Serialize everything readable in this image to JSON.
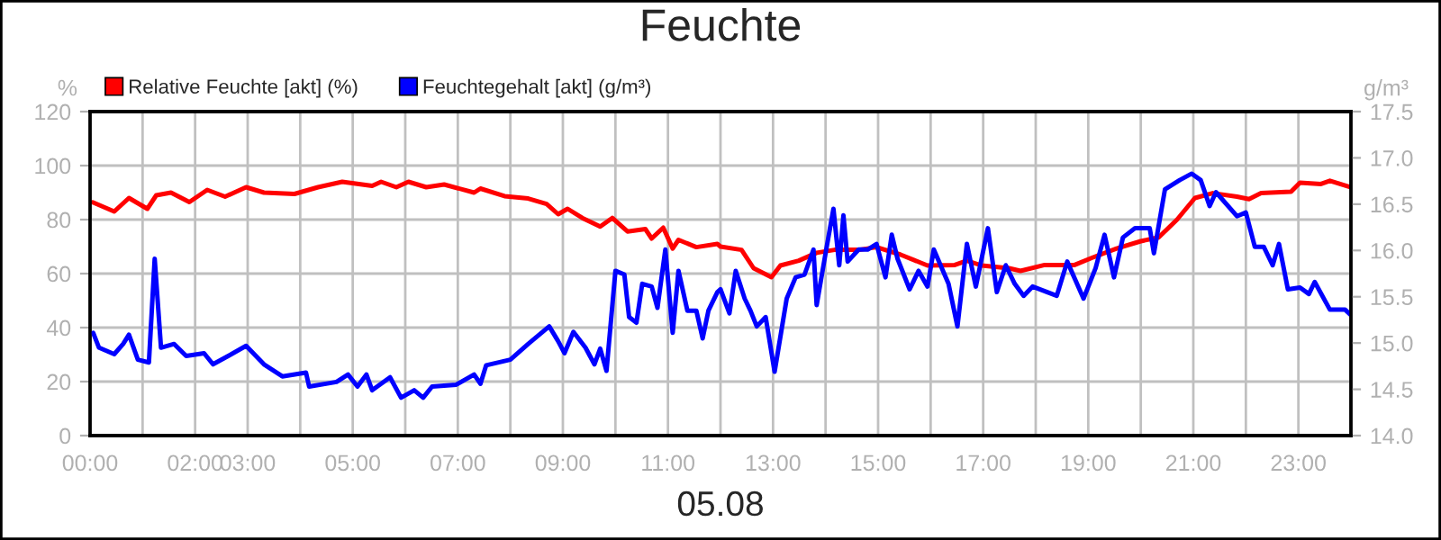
{
  "chart_data": {
    "type": "line",
    "title": "Feuchte",
    "xlabel": "05.08",
    "ylabel": "%",
    "y2label": "g/m³",
    "legend": "top left",
    "grid": true,
    "marker": "none",
    "line_style": "solid",
    "xlim": [
      0,
      24
    ],
    "xticks": [
      {
        "value": 0,
        "label": "00:00"
      },
      {
        "value": 1,
        "label": null
      },
      {
        "value": 2,
        "label": "02:00"
      },
      {
        "value": 3,
        "label": "03:00"
      },
      {
        "value": 4,
        "label": null
      },
      {
        "value": 5,
        "label": "05:00"
      },
      {
        "value": 6,
        "label": null
      },
      {
        "value": 7,
        "label": "07:00"
      },
      {
        "value": 8,
        "label": null
      },
      {
        "value": 9,
        "label": "09:00"
      },
      {
        "value": 10,
        "label": null
      },
      {
        "value": 11,
        "label": "11:00"
      },
      {
        "value": 12,
        "label": null
      },
      {
        "value": 13,
        "label": "13:00"
      },
      {
        "value": 14,
        "label": null
      },
      {
        "value": 15,
        "label": "15:00"
      },
      {
        "value": 16,
        "label": null
      },
      {
        "value": 17,
        "label": "17:00"
      },
      {
        "value": 18,
        "label": null
      },
      {
        "value": 19,
        "label": "19:00"
      },
      {
        "value": 20,
        "label": null
      },
      {
        "value": 21,
        "label": "21:00"
      },
      {
        "value": 22,
        "label": null
      },
      {
        "value": 23,
        "label": "23:00"
      },
      {
        "value": 24,
        "label": null
      }
    ],
    "ylim": [
      0,
      120
    ],
    "yticks": [
      0,
      20,
      40,
      60,
      80,
      100,
      120
    ],
    "y2lim": [
      14.0,
      17.5
    ],
    "y2ticks": [
      {
        "value": 14.0,
        "label": "14.0"
      },
      {
        "value": 14.5,
        "label": "14.5"
      },
      {
        "value": 15.0,
        "label": "15.0"
      },
      {
        "value": 15.5,
        "label": "15.5"
      },
      {
        "value": 16.0,
        "label": "16.0"
      },
      {
        "value": 16.5,
        "label": "16.5"
      },
      {
        "value": 17.0,
        "label": "17.0"
      },
      {
        "value": 17.5,
        "label": "17.5"
      }
    ],
    "series": [
      {
        "name": "Relative Feuchte [akt] (%)",
        "color": "#ff0000",
        "x": [
          0.05,
          0.46,
          0.74,
          1.09,
          1.26,
          1.54,
          1.89,
          2.23,
          2.57,
          2.97,
          3.31,
          3.89,
          4.34,
          4.8,
          5.37,
          5.54,
          5.83,
          6.06,
          6.4,
          6.74,
          7.31,
          7.43,
          7.89,
          8.34,
          8.69,
          8.91,
          9.09,
          9.37,
          9.71,
          9.94,
          10.23,
          10.57,
          10.69,
          10.91,
          11.09,
          11.2,
          11.54,
          11.94,
          12.0,
          12.4,
          12.63,
          12.97,
          13.14,
          13.49,
          13.83,
          14.17,
          14.63,
          14.97,
          15.43,
          15.94,
          16.46,
          16.69,
          16.97,
          17.49,
          17.71,
          18.17,
          18.74,
          19.09,
          19.54,
          20.0,
          20.34,
          20.69,
          21.03,
          21.37,
          21.83,
          22.06,
          22.29,
          22.86,
          23.03,
          23.43,
          23.6,
          24.0
        ],
        "values": [
          86.4,
          83,
          88,
          84,
          89,
          90,
          86.5,
          91,
          88.5,
          92,
          90,
          89.5,
          92,
          94,
          92.5,
          94,
          92,
          94,
          92,
          93,
          90,
          91.5,
          88.7,
          87.8,
          85.8,
          82,
          84,
          80.6,
          77.4,
          80.6,
          75.6,
          76.5,
          73,
          77,
          69.3,
          72.5,
          69.8,
          71,
          70,
          68.8,
          62,
          58.7,
          63,
          64.8,
          67.7,
          68.8,
          68.8,
          69.8,
          67,
          63,
          63.2,
          64.8,
          63,
          62,
          61,
          63.2,
          63.2,
          66,
          69.3,
          72,
          73.4,
          80,
          88,
          89.8,
          88.5,
          87.6,
          89.8,
          90.3,
          93.7,
          93.2,
          94.4,
          92
        ]
      },
      {
        "name": "Feuchtegehalt [akt] (g/m³)",
        "color": "#0000ff",
        "axis": "y2",
        "x": [
          0.06,
          0.17,
          0.46,
          0.63,
          0.74,
          0.91,
          1.12,
          1.23,
          1.35,
          1.6,
          1.83,
          2.17,
          2.34,
          2.63,
          2.97,
          3.31,
          3.66,
          4.11,
          4.17,
          4.69,
          4.91,
          5.09,
          5.26,
          5.37,
          5.71,
          5.92,
          6.17,
          6.34,
          6.51,
          6.97,
          7.31,
          7.43,
          7.54,
          8.0,
          8.34,
          8.74,
          8.91,
          9.03,
          9.2,
          9.43,
          9.6,
          9.71,
          9.83,
          10.0,
          10.17,
          10.26,
          10.4,
          10.51,
          10.69,
          10.8,
          10.95,
          11.09,
          11.2,
          11.37,
          11.54,
          11.66,
          11.77,
          11.94,
          12.0,
          12.17,
          12.29,
          12.46,
          12.57,
          12.69,
          12.86,
          13.03,
          13.26,
          13.43,
          13.6,
          13.77,
          13.83,
          14.0,
          14.15,
          14.26,
          14.34,
          14.42,
          14.63,
          14.8,
          14.97,
          15.14,
          15.26,
          15.37,
          15.6,
          15.77,
          15.94,
          16.06,
          16.34,
          16.51,
          16.69,
          16.86,
          17.09,
          17.26,
          17.43,
          17.6,
          17.77,
          17.94,
          18.4,
          18.6,
          18.91,
          19.14,
          19.31,
          19.49,
          19.66,
          19.89,
          20.17,
          20.25,
          20.46,
          20.74,
          20.97,
          21.14,
          21.31,
          21.43,
          21.83,
          22.0,
          22.17,
          22.34,
          22.51,
          22.63,
          22.8,
          23.03,
          23.2,
          23.31,
          23.6,
          23.89,
          24.0
        ],
        "values": [
          15.11,
          14.95,
          14.88,
          14.99,
          15.09,
          14.82,
          14.79,
          15.91,
          14.95,
          14.99,
          14.86,
          14.89,
          14.77,
          14.86,
          14.97,
          14.77,
          14.64,
          14.68,
          14.53,
          14.58,
          14.66,
          14.53,
          14.66,
          14.49,
          14.63,
          14.41,
          14.49,
          14.41,
          14.53,
          14.55,
          14.66,
          14.56,
          14.76,
          14.82,
          14.99,
          15.18,
          15.02,
          14.89,
          15.12,
          14.95,
          14.77,
          14.94,
          14.7,
          15.78,
          15.74,
          15.28,
          15.22,
          15.64,
          15.61,
          15.38,
          16.01,
          15.11,
          15.78,
          15.35,
          15.35,
          15.05,
          15.35,
          15.55,
          15.58,
          15.32,
          15.78,
          15.48,
          15.35,
          15.18,
          15.28,
          14.69,
          15.48,
          15.71,
          15.74,
          16.01,
          15.41,
          15.97,
          16.45,
          15.84,
          16.38,
          15.88,
          16.01,
          16.01,
          16.07,
          15.71,
          16.17,
          15.91,
          15.58,
          15.78,
          15.61,
          16.01,
          15.64,
          15.18,
          16.07,
          15.61,
          16.24,
          15.55,
          15.84,
          15.64,
          15.51,
          15.61,
          15.51,
          15.88,
          15.48,
          15.81,
          16.17,
          15.71,
          16.14,
          16.24,
          16.24,
          15.97,
          16.66,
          16.76,
          16.83,
          16.76,
          16.48,
          16.63,
          16.37,
          16.41,
          16.04,
          16.04,
          15.84,
          16.07,
          15.58,
          15.6,
          15.53,
          15.66,
          15.36,
          15.36,
          15.3
        ]
      }
    ]
  }
}
